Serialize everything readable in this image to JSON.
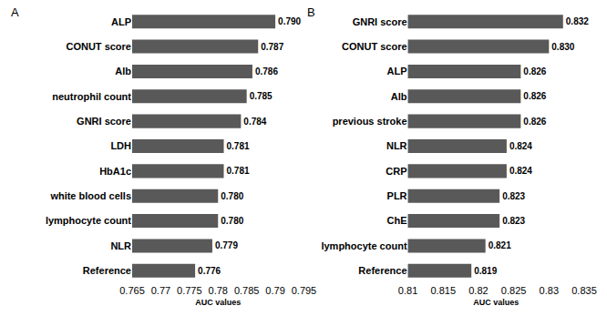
{
  "chart_data": [
    {
      "type": "bar",
      "title": "A",
      "orientation": "horizontal",
      "xlabel": "AUC values",
      "categories": [
        "ALP",
        "CONUT score",
        "Alb",
        "neutrophil count",
        "GNRI score",
        "LDH",
        "HbA1c",
        "white blood cells",
        "lymphocyte count",
        "NLR",
        "Reference"
      ],
      "values": [
        0.79,
        0.787,
        0.786,
        0.785,
        0.784,
        0.781,
        0.781,
        0.78,
        0.78,
        0.779,
        0.776
      ],
      "value_labels": [
        "0.790",
        "0.787",
        "0.786",
        "0.785",
        "0.784",
        "0.781",
        "0.781",
        "0.780",
        "0.780",
        "0.779",
        "0.776"
      ],
      "xlim": [
        0.765,
        0.795
      ],
      "xticks": [
        0.765,
        0.77,
        0.775,
        0.78,
        0.785,
        0.79,
        0.795
      ],
      "color": "#595959",
      "data_labels": true
    },
    {
      "type": "bar",
      "title": "B",
      "orientation": "horizontal",
      "xlabel": "AUC values",
      "categories": [
        "GNRI score",
        "CONUT score",
        "ALP",
        "Alb",
        "previous stroke",
        "NLR",
        "CRP",
        "PLR",
        "ChE",
        "lymphocyte count",
        "Reference"
      ],
      "values": [
        0.832,
        0.83,
        0.826,
        0.826,
        0.826,
        0.824,
        0.824,
        0.823,
        0.823,
        0.821,
        0.819
      ],
      "value_labels": [
        "0.832",
        "0.830",
        "0.826",
        "0.826",
        "0.826",
        "0.824",
        "0.824",
        "0.823",
        "0.823",
        "0.821",
        "0.819"
      ],
      "xlim": [
        0.81,
        0.835
      ],
      "xticks": [
        0.81,
        0.815,
        0.82,
        0.825,
        0.83,
        0.835
      ],
      "color": "#595959",
      "data_labels": true
    }
  ]
}
